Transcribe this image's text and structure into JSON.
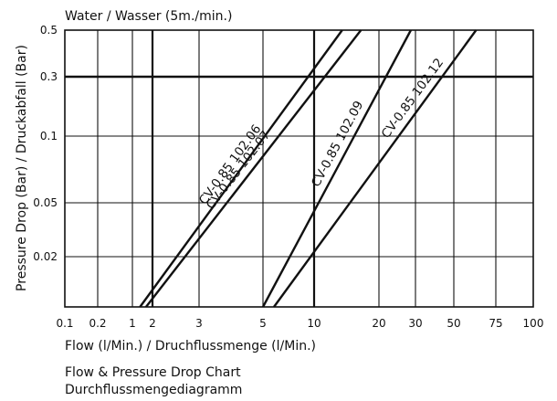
{
  "chart_data": {
    "type": "line",
    "title": "Water / Wasser (5m./min.)",
    "xlabel": "Flow (l/Min.) / Druchflussmenge (l/Min.)",
    "ylabel": "Pressure Drop (Bar) / Druckabfall (Bar)",
    "x_ticks": [
      "0.1",
      "0.2",
      "1",
      "2",
      "3",
      "5",
      "10",
      "20",
      "30",
      "50",
      "75",
      "100"
    ],
    "y_ticks": [
      "0.5",
      "0.3",
      "0.1",
      "0.05",
      "0.02"
    ],
    "grid": true,
    "series": [
      {
        "name": "CV-0.85 102.06",
        "points": [
          [
            1.3,
            0.01
          ],
          [
            13.5,
            0.5
          ]
        ]
      },
      {
        "name": "CV-0.85 102.07",
        "points": [
          [
            1.6,
            0.01
          ],
          [
            16.5,
            0.5
          ]
        ]
      },
      {
        "name": "CV-0.85 102.09",
        "points": [
          [
            5,
            0.01
          ],
          [
            28.5,
            0.5
          ]
        ]
      },
      {
        "name": "CV-0.85 102.12",
        "points": [
          [
            5.8,
            0.01
          ],
          [
            62,
            0.5
          ]
        ]
      }
    ]
  },
  "caption": {
    "line1": "Flow & Pressure Drop Chart",
    "line2": "Durchflussmengediagramm"
  },
  "colors": {
    "ink": "#111111",
    "background": "#ffffff"
  }
}
